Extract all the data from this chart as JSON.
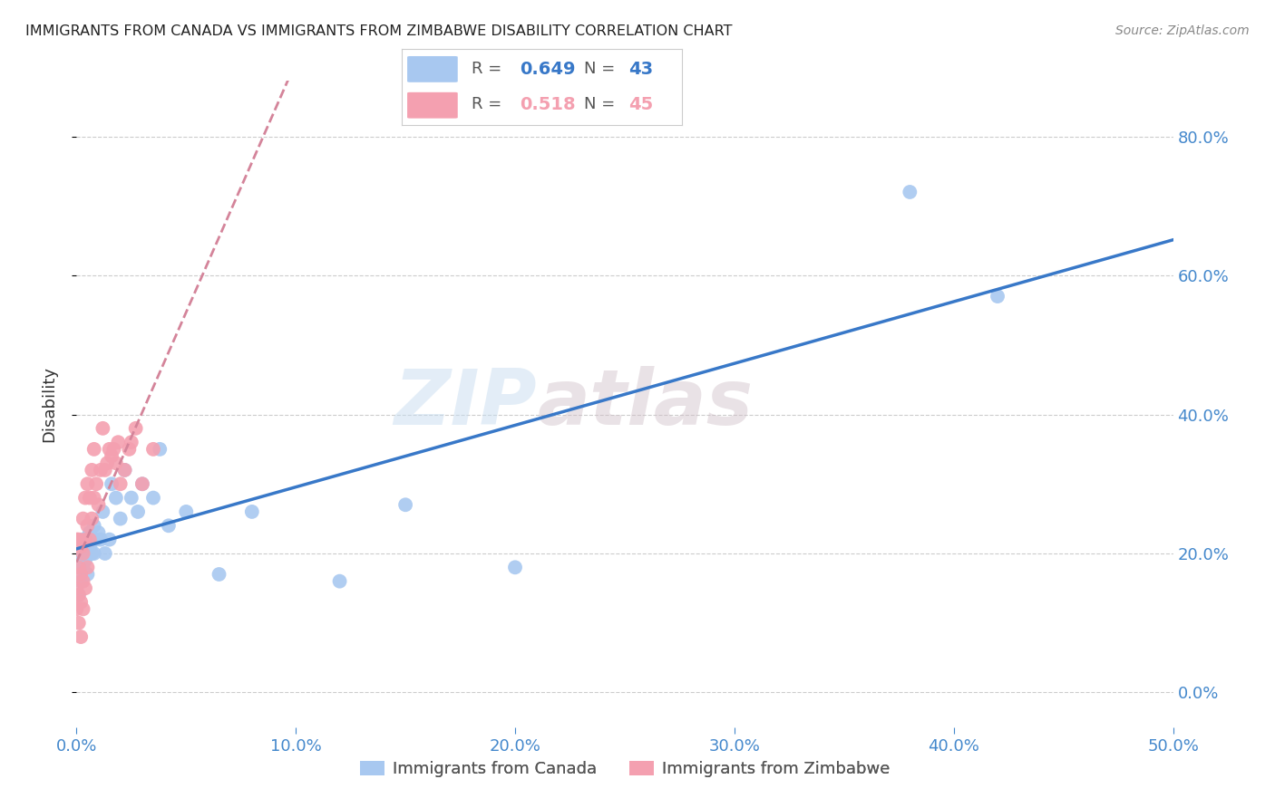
{
  "title": "IMMIGRANTS FROM CANADA VS IMMIGRANTS FROM ZIMBABWE DISABILITY CORRELATION CHART",
  "source": "Source: ZipAtlas.com",
  "ylabel": "Disability",
  "watermark": "ZIPatlas",
  "xlim": [
    0.0,
    0.5
  ],
  "ylim": [
    -0.05,
    0.88
  ],
  "yticks": [
    0.0,
    0.2,
    0.4,
    0.6,
    0.8
  ],
  "xticks": [
    0.0,
    0.1,
    0.2,
    0.3,
    0.4,
    0.5
  ],
  "canada_line_color": "#3878c8",
  "zimbabwe_line_color": "#d4849a",
  "dot_canada_color": "#a8c8f0",
  "dot_zimbabwe_color": "#f4a0b0",
  "background_color": "#ffffff",
  "grid_color": "#cccccc",
  "title_color": "#222222",
  "axis_label_color": "#4488cc",
  "source_color": "#888888",
  "canada_x": [
    0.001,
    0.001,
    0.002,
    0.002,
    0.003,
    0.003,
    0.003,
    0.004,
    0.004,
    0.005,
    0.005,
    0.005,
    0.006,
    0.006,
    0.006,
    0.007,
    0.007,
    0.008,
    0.008,
    0.009,
    0.01,
    0.011,
    0.012,
    0.013,
    0.015,
    0.016,
    0.018,
    0.02,
    0.022,
    0.025,
    0.028,
    0.03,
    0.035,
    0.038,
    0.042,
    0.05,
    0.065,
    0.08,
    0.12,
    0.15,
    0.2,
    0.38,
    0.42
  ],
  "canada_y": [
    0.14,
    0.18,
    0.16,
    0.2,
    0.18,
    0.22,
    0.2,
    0.19,
    0.21,
    0.2,
    0.22,
    0.17,
    0.21,
    0.23,
    0.2,
    0.2,
    0.22,
    0.24,
    0.2,
    0.22,
    0.23,
    0.22,
    0.26,
    0.2,
    0.22,
    0.3,
    0.28,
    0.25,
    0.32,
    0.28,
    0.26,
    0.3,
    0.28,
    0.35,
    0.24,
    0.26,
    0.17,
    0.26,
    0.16,
    0.27,
    0.18,
    0.72,
    0.57
  ],
  "zimbabwe_x": [
    0.0,
    0.0,
    0.0,
    0.001,
    0.001,
    0.001,
    0.001,
    0.002,
    0.002,
    0.002,
    0.002,
    0.003,
    0.003,
    0.003,
    0.003,
    0.004,
    0.004,
    0.004,
    0.005,
    0.005,
    0.005,
    0.006,
    0.006,
    0.007,
    0.007,
    0.008,
    0.008,
    0.009,
    0.01,
    0.011,
    0.012,
    0.013,
    0.014,
    0.015,
    0.016,
    0.017,
    0.018,
    0.019,
    0.02,
    0.022,
    0.024,
    0.025,
    0.027,
    0.03,
    0.035
  ],
  "zimbabwe_y": [
    0.12,
    0.15,
    0.22,
    0.1,
    0.14,
    0.18,
    0.22,
    0.08,
    0.13,
    0.17,
    0.21,
    0.12,
    0.16,
    0.2,
    0.25,
    0.15,
    0.22,
    0.28,
    0.18,
    0.24,
    0.3,
    0.22,
    0.28,
    0.25,
    0.32,
    0.28,
    0.35,
    0.3,
    0.27,
    0.32,
    0.38,
    0.32,
    0.33,
    0.35,
    0.34,
    0.35,
    0.33,
    0.36,
    0.3,
    0.32,
    0.35,
    0.36,
    0.38,
    0.3,
    0.35
  ]
}
